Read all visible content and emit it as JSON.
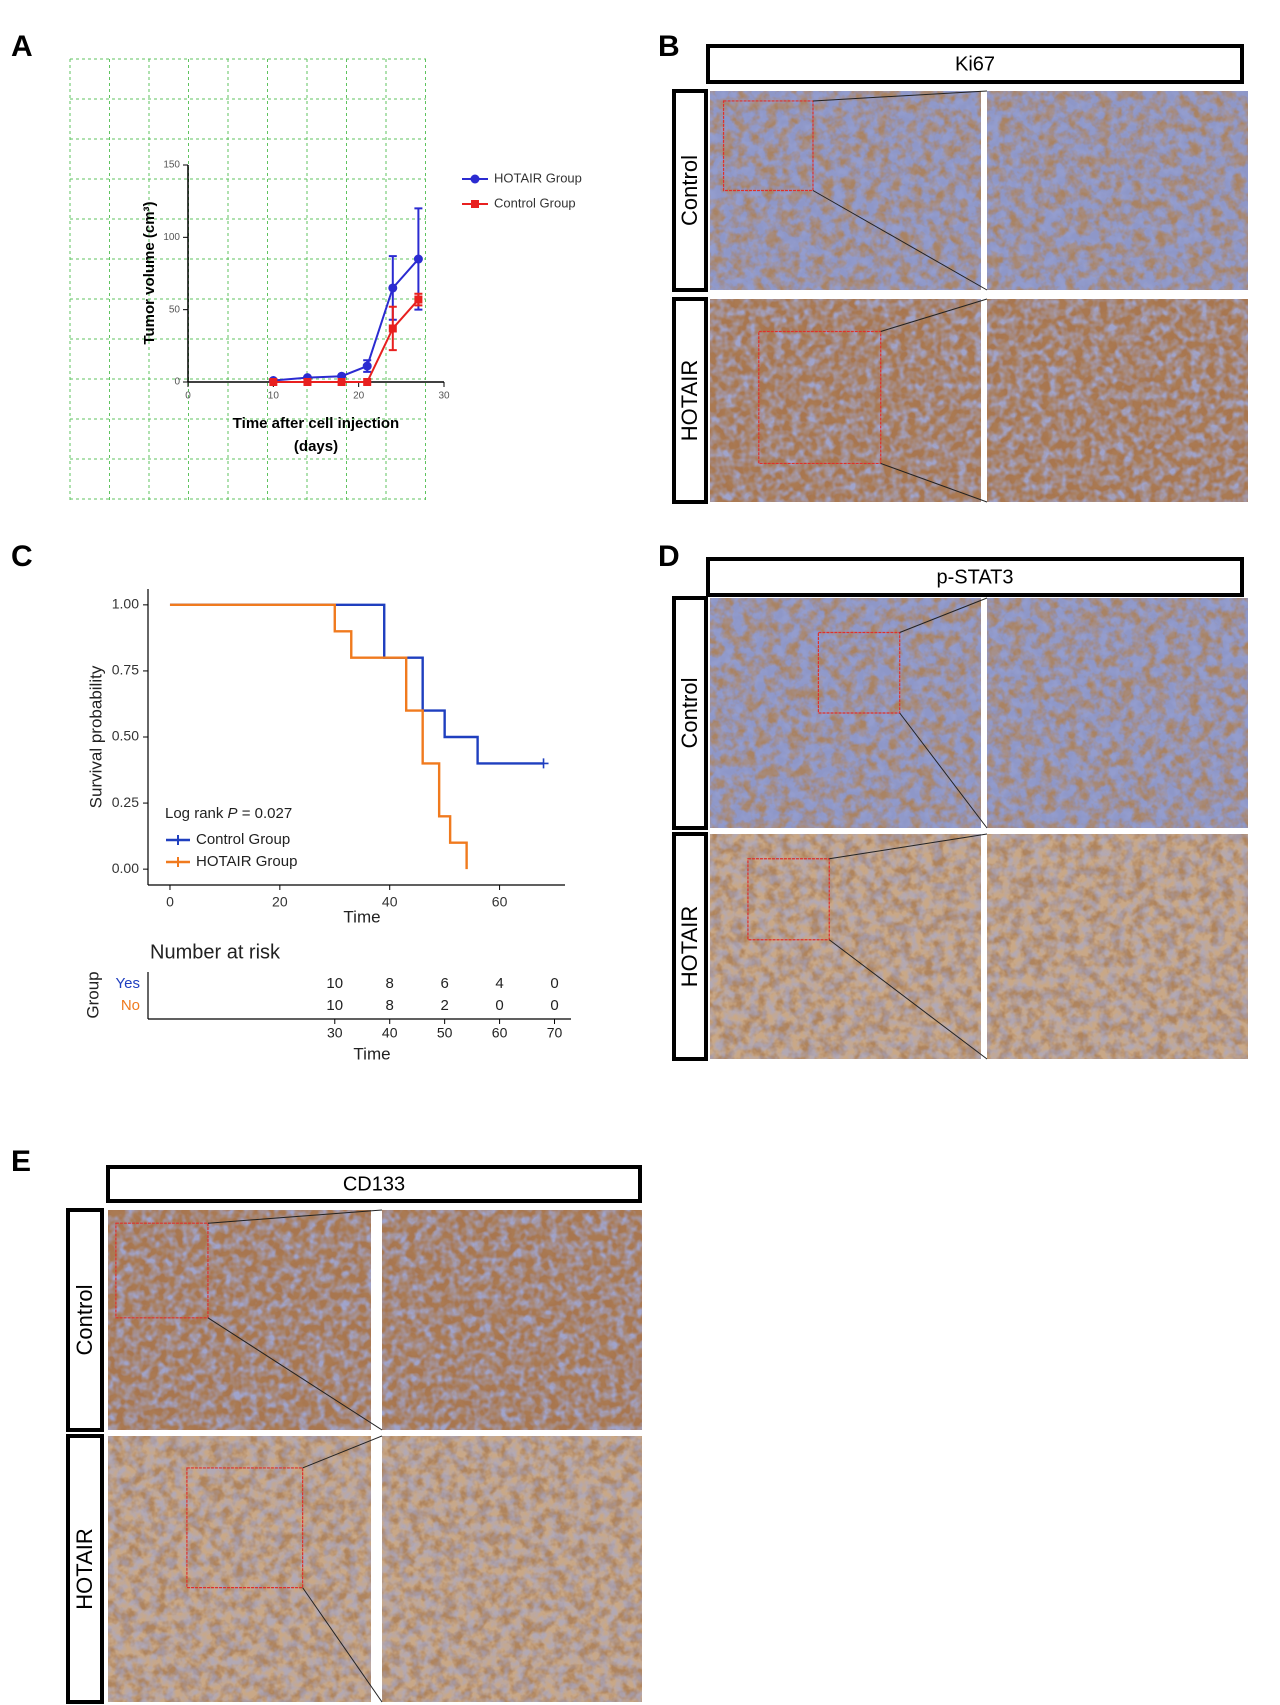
{
  "panel_labels": [
    "A",
    "B",
    "C",
    "D",
    "E"
  ],
  "chart_data": [
    {
      "type": "line",
      "ylabel": "Tumor volume (cm³)",
      "xlabel": [
        "Time after cell injection",
        "(days)"
      ],
      "x": [
        10,
        14,
        18,
        21,
        24,
        27
      ],
      "series": [
        {
          "name": "HOTAIR Group",
          "color": "#2b2bd1",
          "marker": "circle",
          "values": [
            1,
            3,
            4,
            11,
            65,
            85
          ],
          "errors": [
            0,
            0,
            0,
            4,
            22,
            35
          ]
        },
        {
          "name": "Control Group",
          "color": "#e8201f",
          "marker": "square",
          "values": [
            0,
            0,
            0,
            0,
            37,
            57
          ],
          "errors": [
            0,
            0,
            0,
            0,
            15,
            4
          ]
        }
      ],
      "xlim": [
        0,
        30
      ],
      "xticks": [
        0,
        10,
        20,
        30
      ],
      "ylim": [
        0,
        150
      ],
      "yticks": [
        0,
        50,
        100,
        150
      ],
      "grid": true,
      "legend": "upper right"
    },
    {
      "type": "step",
      "ylabel": "Survival probability",
      "xlabel": "Time",
      "annotation": {
        "prefix": "Log rank ",
        "italic": "P",
        "suffix": " = 0.027"
      },
      "series": [
        {
          "name": "Control Group",
          "color": "#1f3fbf",
          "x": [
            0,
            39,
            46,
            50,
            56,
            68
          ],
          "values": [
            1,
            0.8,
            0.6,
            0.5,
            0.4,
            0.4
          ],
          "censored": [
            68
          ]
        },
        {
          "name": "HOTAIR Group",
          "color": "#f07a1e",
          "x": [
            0,
            30,
            33,
            43,
            46,
            49,
            51,
            54
          ],
          "values": [
            1,
            0.9,
            0.8,
            0.6,
            0.4,
            0.2,
            0.1,
            0
          ]
        }
      ],
      "xlim": [
        -4,
        73
      ],
      "xticks": [
        0,
        20,
        40,
        60
      ],
      "ylim": [
        -0.06,
        1.06
      ],
      "yticks": [
        {
          "value": 0,
          "label": "0.00"
        },
        0.25,
        {
          "value": 0.5,
          "label": "0.50"
        },
        0.75,
        {
          "value": 1,
          "label": "1.00"
        }
      ],
      "legend": "lower left",
      "risk_table": {
        "title": "Number at risk",
        "ylabel": "Group",
        "xlabel": "Time",
        "xticks": [
          30,
          40,
          50,
          60,
          70
        ],
        "groups": [
          {
            "name": "Yes",
            "color": "#1f3fbf",
            "values": [
              10,
              8,
              6,
              4,
              0
            ]
          },
          {
            "name": "No",
            "color": "#f07a1e",
            "values": [
              10,
              8,
              2,
              0,
              0
            ]
          }
        ]
      }
    }
  ],
  "image_panels": [
    {
      "header": "Ki67",
      "rows": [
        "Control",
        "HOTAIR"
      ]
    },
    {
      "header": "p-STAT3",
      "rows": [
        "Control",
        "HOTAIR"
      ]
    },
    {
      "header": "CD133",
      "rows": [
        "Control",
        "HOTAIR"
      ]
    }
  ]
}
